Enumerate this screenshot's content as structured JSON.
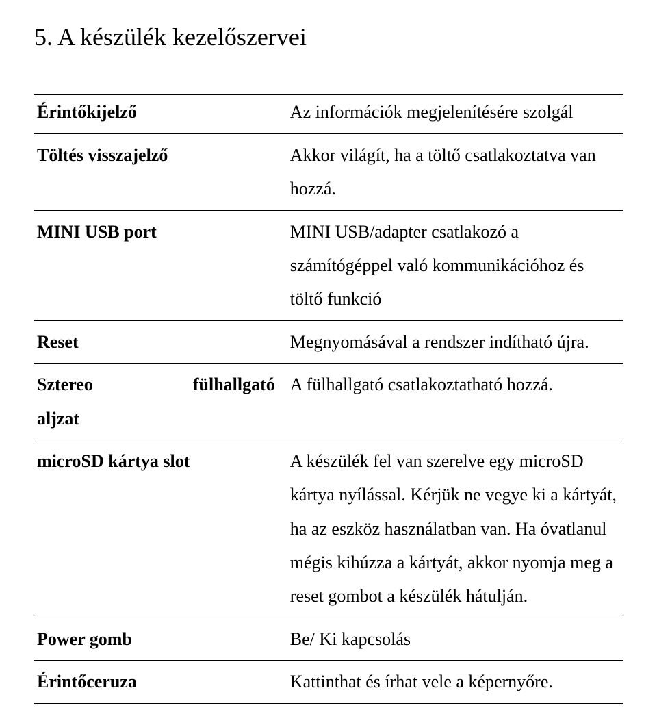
{
  "heading": "5. A készülék kezelőszervei",
  "rows": [
    {
      "label_parts": [
        "Érintőkijelző"
      ],
      "desc": "Az információk megjelenítésére szolgál"
    },
    {
      "label_parts": [
        "Töltés visszajelző"
      ],
      "desc": "Akkor világít, ha a töltő csatlakoztatva van hozzá."
    },
    {
      "label_parts": [
        "MINI USB port"
      ],
      "desc": "MINI USB/adapter csatlakozó a számítógéppel való kommunikációhoz és töltő funkció"
    },
    {
      "label_parts": [
        "Reset"
      ],
      "desc": "Megnyomásával a rendszer indítható újra."
    },
    {
      "label_parts": [
        "Sztereo",
        "fülhallgató",
        "aljzat"
      ],
      "spread_first_line": true,
      "desc": "A fülhallgató csatlakoztatható hozzá."
    },
    {
      "label_parts": [
        "microSD kártya slot"
      ],
      "desc": "A készülék fel van szerelve egy microSD kártya nyílással. Kérjük ne vegye ki a kártyát, ha az eszköz használatban van. Ha óvatlanul mégis kihúzza a kártyát, akkor nyomja meg a reset gombot a készülék hátulján."
    },
    {
      "label_parts": [
        "Power gomb"
      ],
      "desc": "Be/ Ki kapcsolás"
    },
    {
      "label_parts": [
        "Érintőceruza"
      ],
      "desc": "Kattinthat és írhat vele a képernyőre."
    }
  ]
}
